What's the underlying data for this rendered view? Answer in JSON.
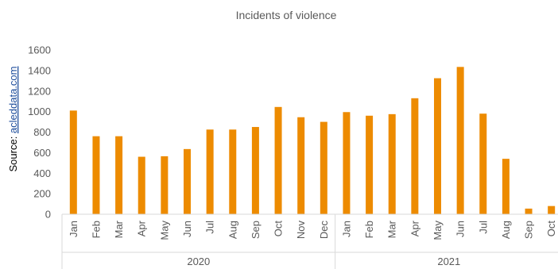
{
  "chart_data": {
    "type": "bar",
    "title": "Incidents of violence",
    "source_prefix": "Source: ",
    "source_link": "acleddata.com",
    "bar_color": "#ED8B00",
    "ylim": [
      0,
      1600
    ],
    "yticks": [
      "0",
      "200",
      "400",
      "600",
      "800",
      "1000",
      "1200",
      "1400",
      "1600"
    ],
    "grid": false,
    "legend": "none",
    "groups": [
      {
        "label": "2020",
        "categories": [
          "Jan",
          "Feb",
          "Mar",
          "Apr",
          "May",
          "Jun",
          "Jul",
          "Aug",
          "Sep",
          "Oct",
          "Nov",
          "Dec"
        ]
      },
      {
        "label": "2021",
        "categories": [
          "Jan",
          "Feb",
          "Mar",
          "Apr",
          "May",
          "Jun",
          "Jul",
          "Aug",
          "Sep",
          "Oct"
        ]
      }
    ],
    "values": [
      1010,
      760,
      760,
      560,
      565,
      635,
      825,
      825,
      850,
      1045,
      945,
      900,
      995,
      960,
      975,
      1130,
      1325,
      1435,
      980,
      540,
      55,
      80
    ]
  }
}
